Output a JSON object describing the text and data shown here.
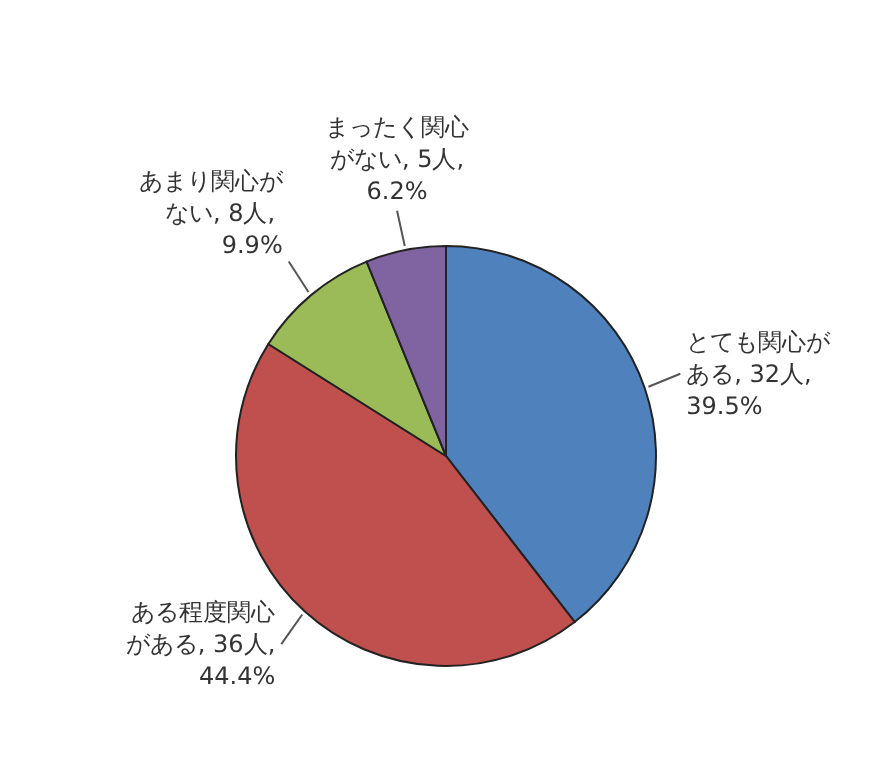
{
  "chart_data": {
    "type": "pie",
    "categories": [
      "とても関心がある",
      "ある程度関心がある",
      "あまり関心がない",
      "まったく関心がない"
    ],
    "values": [
      32,
      36,
      8,
      5
    ],
    "value_labels": [
      "32人, 39.5%",
      "36人, 44.4%",
      "8人, 9.9%",
      "5人, 6.2%"
    ],
    "colors": [
      "#4f81bd",
      "#c0504d",
      "#9bbb59",
      "#8064a2"
    ],
    "legend": false
  }
}
